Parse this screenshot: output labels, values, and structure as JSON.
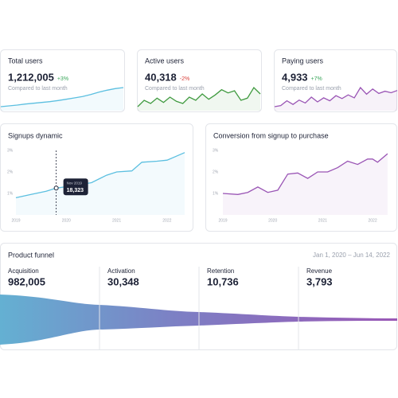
{
  "cards": [
    {
      "title": "Total users",
      "value": "1,212,005",
      "change": "+3%",
      "note": "Compared to last month",
      "color": "#5bbfe0",
      "change_color": "#3aa65a",
      "values": [
        1,
        1.3,
        1.6,
        2,
        2.3,
        2.6,
        2.9,
        3.3,
        3.8,
        4.3,
        4.8,
        5.6,
        6.5,
        7.2,
        7.8,
        8.2
      ]
    },
    {
      "title": "Active users",
      "value": "40,318",
      "change": "-2%",
      "note": "Compared to last month",
      "color": "#3f9a3f",
      "change_color": "#d9423c",
      "values": [
        3,
        3.6,
        3.3,
        3.8,
        3.4,
        3.9,
        3.5,
        3.3,
        3.9,
        3.6,
        4.2,
        3.7,
        4.1,
        4.6,
        4.3,
        4.5,
        3.6,
        3.8,
        4.8,
        4.2
      ]
    },
    {
      "title": "Paying users",
      "value": "4,933",
      "change": "+7%",
      "note": "Compared to last month",
      "color": "#9a55b5",
      "change_color": "#3aa65a",
      "values": [
        2,
        2.3,
        3.6,
        2.6,
        3.8,
        3,
        4.6,
        3.3,
        4.4,
        3.6,
        5,
        4.2,
        5.2,
        4.4,
        7.2,
        5.4,
        6.8,
        5.6,
        6.2,
        5.8,
        6.4
      ]
    }
  ],
  "charts": [
    {
      "type": "line",
      "title": "Signups dynamic",
      "color": "#5bbfe0",
      "x": [
        2019,
        2019.3,
        2019.6,
        2019.8,
        2020.1,
        2020.5,
        2020.8,
        2021,
        2021.3,
        2021.5,
        2021.8,
        2022,
        2022.2,
        2022.35
      ],
      "values": [
        0.8,
        0.95,
        1.1,
        1.25,
        1.35,
        1.5,
        1.85,
        2,
        2.05,
        2.45,
        2.5,
        2.55,
        2.75,
        2.9
      ],
      "xlim": [
        2019,
        2022.35
      ],
      "ylim": [
        0,
        3
      ],
      "xticks": [
        2019,
        2020,
        2021,
        2022
      ],
      "yticks": [
        {
          "value": 1,
          "label": "1%"
        },
        {
          "value": 2,
          "label": "2%"
        },
        {
          "value": 3,
          "label": "3%"
        }
      ],
      "tooltip": {
        "date": "Nov 2019",
        "value": "18,323"
      }
    },
    {
      "type": "line",
      "title": "Conversion from signup to purchase",
      "color": "#9a55b5",
      "x": [
        2019,
        2019.3,
        2019.5,
        2019.7,
        2019.9,
        2020.1,
        2020.3,
        2020.5,
        2020.7,
        2020.9,
        2021.1,
        2021.3,
        2021.5,
        2021.7,
        2021.9,
        2022,
        2022.1,
        2022.3
      ],
      "values": [
        1,
        0.95,
        1.05,
        1.3,
        1.05,
        1.15,
        1.9,
        1.95,
        1.7,
        2,
        2,
        2.2,
        2.5,
        2.35,
        2.6,
        2.6,
        2.45,
        2.85
      ],
      "xlim": [
        2019,
        2022.35
      ],
      "ylim": [
        0,
        3
      ],
      "xticks": [
        2019,
        2020,
        2021,
        2022
      ],
      "yticks": [
        {
          "value": 1,
          "label": "1%"
        },
        {
          "value": 2,
          "label": "2%"
        },
        {
          "value": 3,
          "label": "3%"
        }
      ]
    }
  ],
  "funnel": {
    "title": "Product funnel",
    "date_range": "Jan 1, 2020 – Jun 14, 2022",
    "stages": [
      {
        "name": "Acquisition",
        "value": "982,005"
      },
      {
        "name": "Activation",
        "value": "30,348"
      },
      {
        "name": "Retention",
        "value": "10,736"
      },
      {
        "name": "Revenue",
        "value": "3,793"
      }
    ]
  }
}
